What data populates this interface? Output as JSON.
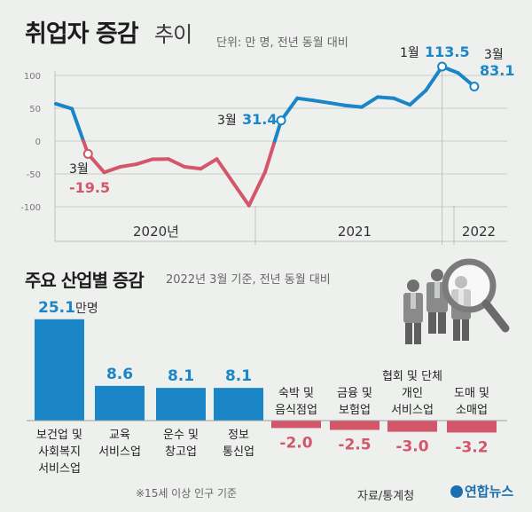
{
  "header": {
    "title": "취업자 증감",
    "title_sub": "추이",
    "unit_note": "단위: 만 명, 전년 동월 대비"
  },
  "section2": {
    "title": "주요 산업별 증감",
    "subtitle": "2022년 3월 기준, 전년 동월 대비",
    "footnote": "※15세 이상 인구 기준"
  },
  "source": "자료/통계청",
  "logo": "연합뉴스",
  "colors": {
    "positive": "#1a86c7",
    "negative": "#d4566a",
    "grid": "#c9cdca"
  },
  "chart_data": [
    {
      "type": "line",
      "y_ticks": [
        100,
        50,
        0,
        -50,
        -100
      ],
      "ylim": [
        -115,
        115
      ],
      "year_labels": [
        "2020년",
        "2021",
        "2022"
      ],
      "series": [
        {
          "values": [
            56.8,
            49.2,
            -19.5,
            -47.6,
            -39.2,
            -35.2,
            -27.7,
            -27.4,
            -39.2,
            -42.1,
            -27.3,
            -62.8,
            -98.2,
            -47.3,
            31.4,
            65.2,
            61.9,
            58.2,
            54.2,
            51.8,
            67.1,
            65.2,
            55.3,
            77.3,
            113.5,
            103.7,
            83.1
          ]
        }
      ],
      "annotations": [
        {
          "month": "3월",
          "value": "-19.5"
        },
        {
          "month": "3월",
          "value": "31.4"
        },
        {
          "month": "1월",
          "value": "113.5"
        },
        {
          "month": "3월",
          "value": "83.1"
        }
      ]
    },
    {
      "type": "bar",
      "categories": [
        [
          "보건업 및",
          "사회복지",
          "서비스업"
        ],
        [
          "교육",
          "서비스업"
        ],
        [
          "운수 및",
          "창고업"
        ],
        [
          "정보",
          "통신업"
        ],
        [
          "숙박 및",
          "음식점업"
        ],
        [
          "금융 및",
          "보험업"
        ],
        [
          "협회 및 단체",
          "개인",
          "서비스업"
        ],
        [
          "도매 및",
          "소매업"
        ]
      ],
      "values": [
        25.1,
        8.6,
        8.1,
        8.1,
        -2.0,
        -2.5,
        -3.0,
        -3.2
      ],
      "value_labels": [
        "25.1",
        "8.6",
        "8.1",
        "8.1",
        "-2.0",
        "-2.5",
        "-3.0",
        "-3.2"
      ],
      "first_unit": "만명"
    }
  ]
}
